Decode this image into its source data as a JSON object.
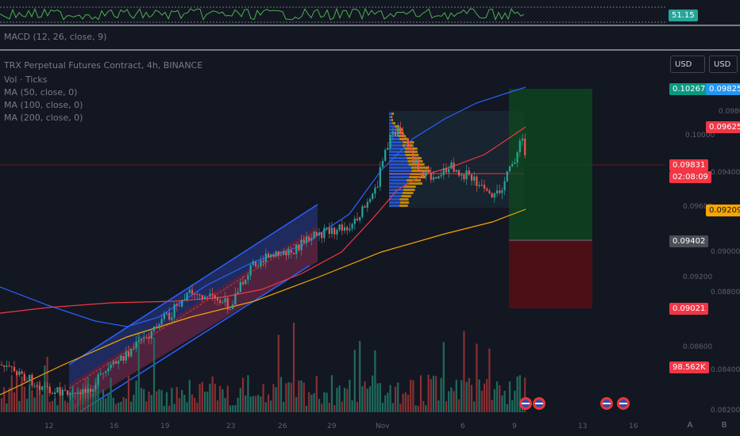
{
  "symbol_title": "TRX Perpetual Futures Contract, 4h, BINANCE",
  "indicators": {
    "vol": "Vol · Ticks",
    "ma50": "MA (50, close, 0)",
    "ma100": "MA (100, close, 0)",
    "ma200": "MA (200, close, 0)",
    "macd": "MACD (12, 26, close, 9)"
  },
  "rsi_value": "51.15",
  "currency_buttons": [
    "USD",
    "USD"
  ],
  "price_tags": {
    "target": "0.10267",
    "blue_left": "0.09825",
    "red_right": "0.09625",
    "last_price": "0.09831",
    "countdown": "02:08:09",
    "orange_right": "0.09209",
    "entry": "0.09402",
    "stop": "0.09021",
    "volume": "98.562K"
  },
  "price_axis_ticks": [
    "0.10000",
    "0.09800",
    "0.09400",
    "0.09600",
    "0.09000",
    "0.09200",
    "0.08800",
    "0.08600",
    "0.08400",
    "0.08200"
  ],
  "time_axis_ticks": [
    "12",
    "16",
    "19",
    "23",
    "26",
    "29",
    "Nov",
    "6",
    "9",
    "13",
    "16"
  ],
  "scale_buttons": [
    "A",
    "B"
  ],
  "colors": {
    "background": "#131722",
    "up": "#26a69a",
    "down": "#ef5350",
    "ma50": "#f23645",
    "ma100": "#2962ff",
    "ma200": "#f7a600"
  }
}
